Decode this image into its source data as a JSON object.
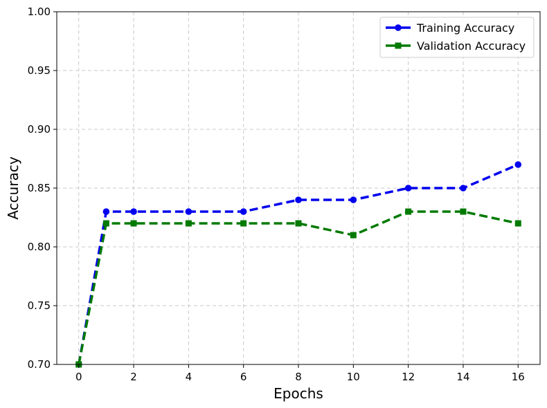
{
  "chart_data": {
    "type": "line",
    "title": "",
    "xlabel": "Epochs",
    "ylabel": "Accuracy",
    "xlim": [
      -0.8,
      16.8
    ],
    "ylim": [
      0.7,
      1.0
    ],
    "xticks": [
      0,
      2,
      4,
      6,
      8,
      10,
      12,
      14,
      16
    ],
    "yticks": [
      0.7,
      0.75,
      0.8,
      0.85,
      0.9,
      0.95,
      1.0
    ],
    "xtick_labels": [
      "0",
      "2",
      "4",
      "6",
      "8",
      "10",
      "12",
      "14",
      "16"
    ],
    "ytick_labels": [
      "0.70",
      "0.75",
      "0.80",
      "0.85",
      "0.90",
      "0.95",
      "1.00"
    ],
    "grid": true,
    "legend_position": "top-right",
    "x": [
      0,
      1,
      2,
      4,
      6,
      8,
      10,
      12,
      14,
      16
    ],
    "series": [
      {
        "name": "Training Accuracy",
        "color": "#0000ee",
        "marker": "circle",
        "linestyle": "dashed",
        "values": [
          0.7,
          0.83,
          0.83,
          0.83,
          0.83,
          0.84,
          0.84,
          0.85,
          0.85,
          0.87
        ]
      },
      {
        "name": "Validation Accuracy",
        "color": "#007a00",
        "marker": "square",
        "linestyle": "dashed",
        "values": [
          0.7,
          0.82,
          0.82,
          0.82,
          0.82,
          0.82,
          0.81,
          0.83,
          0.83,
          0.82
        ]
      }
    ]
  }
}
